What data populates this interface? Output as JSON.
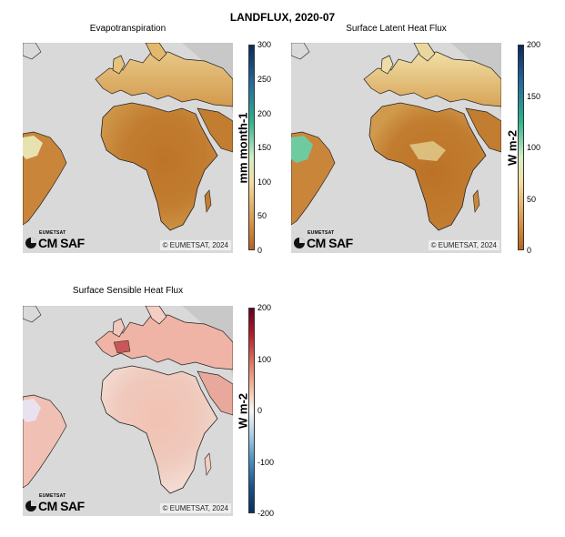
{
  "figure": {
    "title": "LANDFLUX, 2020-07"
  },
  "panels": [
    {
      "title": "Evapotranspiration",
      "unit": "mm month-1",
      "ticks": [
        "0",
        "50",
        "100",
        "150",
        "200",
        "250",
        "300"
      ],
      "range": [
        0,
        300
      ],
      "colormap": [
        "#b5651d",
        "#d9974a",
        "#f3dca1",
        "#d6eec4",
        "#2fb58d",
        "#23689e",
        "#0a2a5a"
      ],
      "land_color": "#c07a2f",
      "copyright": "© EUMETSAT, 2024",
      "logo_small": "EUMETSAT",
      "logo_big": "CM SAF"
    },
    {
      "title": "Surface Latent Heat Flux",
      "unit": "W m-2",
      "ticks": [
        "0",
        "50",
        "100",
        "150",
        "200"
      ],
      "range": [
        0,
        200
      ],
      "colormap": [
        "#b5651d",
        "#d9974a",
        "#f3dca1",
        "#d6eec4",
        "#2fb58d",
        "#23689e",
        "#0a2a5a"
      ],
      "land_color": "#c07a2f",
      "copyright": "© EUMETSAT, 2024",
      "logo_small": "EUMETSAT",
      "logo_big": "CM SAF"
    },
    {
      "title": "Surface Sensible Heat Flux",
      "unit": "W m-2",
      "ticks": [
        "-200",
        "-100",
        "0",
        "100",
        "200"
      ],
      "range": [
        -200,
        200
      ],
      "colormap": [
        "#67001f",
        "#b2182b",
        "#e48066",
        "#f4c3ab",
        "#f7f7f7",
        "#a9cfe5",
        "#4b93c3",
        "#1a4f8a",
        "#053061"
      ],
      "land_color": "#efc4bc",
      "copyright": "© EUMETSAT, 2024",
      "logo_small": "EUMETSAT",
      "logo_big": "CM SAF"
    }
  ]
}
